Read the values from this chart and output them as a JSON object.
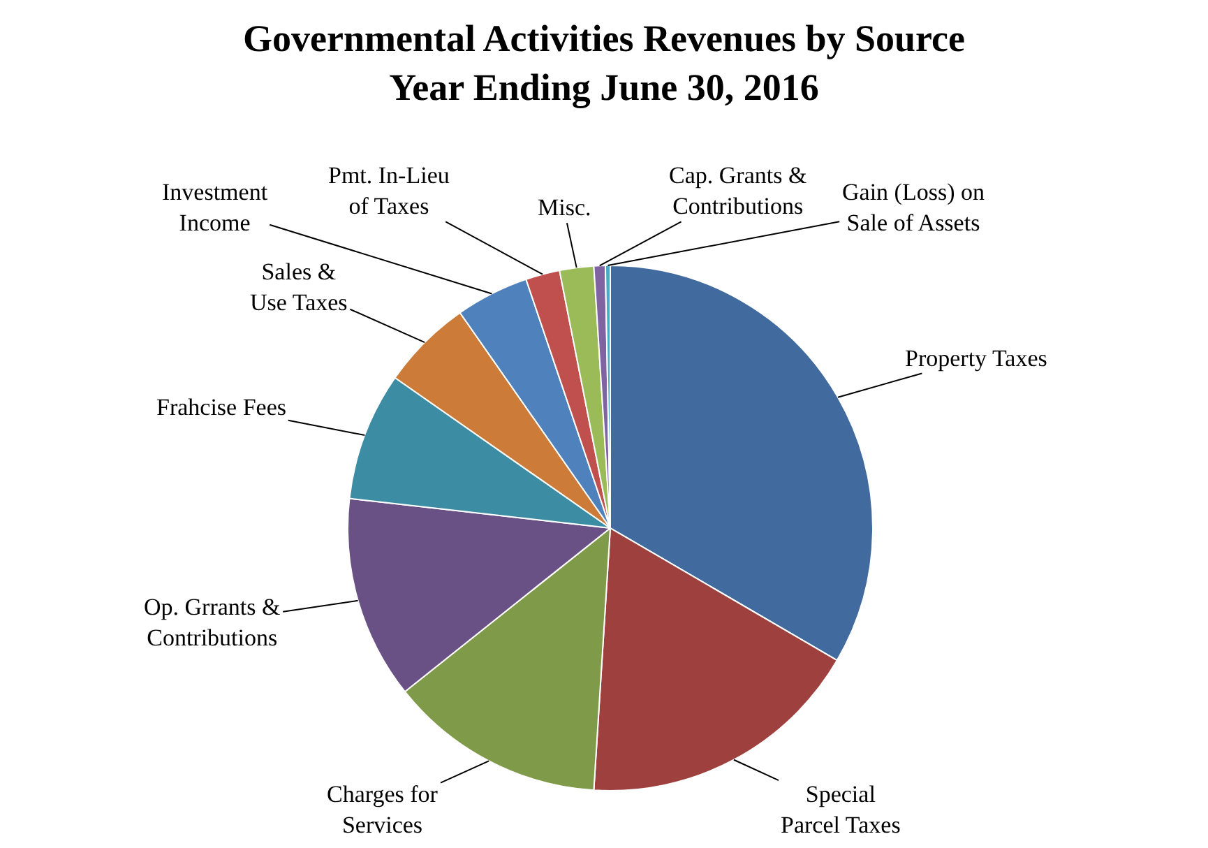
{
  "chart_data": {
    "type": "pie",
    "title": "Governmental Activities Revenues by Source\nYear Ending June 30, 2016",
    "categories": [
      "Property Taxes",
      "Special Parcel Taxes",
      "Charges for Services",
      "Op. Grrants & Contributions",
      "Frahcise Fees",
      "Sales & Use Taxes",
      "Investment Income",
      "Pmt. In-Lieu of Taxes",
      "Misc.",
      "Cap. Grants & Contributions",
      "Gain (Loss) on Sale of Assets"
    ],
    "values": [
      33.4,
      17.6,
      13.3,
      12.5,
      7.9,
      5.6,
      4.5,
      2.1,
      2.1,
      0.7,
      0.3
    ],
    "colors": [
      "#416b9e",
      "#9e413e",
      "#7f9a48",
      "#695185",
      "#3c8da3",
      "#cc7b38",
      "#4f81bd",
      "#c0504d",
      "#9bbb59",
      "#8064a2",
      "#4bacc6"
    ],
    "legend": false
  }
}
